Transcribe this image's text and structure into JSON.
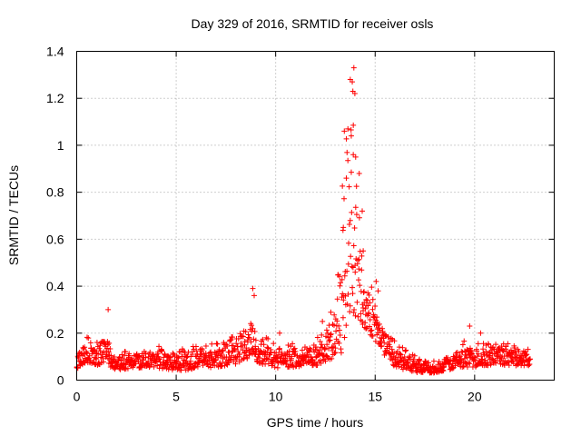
{
  "chart_data": {
    "type": "scatter",
    "title": "Day 329 of 2016, SRMTID for receiver osls",
    "xlabel": "GPS time / hours",
    "ylabel": "SRMTID / TECUs",
    "xlim": [
      0,
      24
    ],
    "ylim": [
      0,
      1.4
    ],
    "xticks": [
      0,
      5,
      10,
      15,
      20
    ],
    "yticks": [
      0,
      0.2,
      0.4,
      0.6,
      0.8,
      1,
      1.2,
      1.4
    ],
    "ytick_labels": [
      "0",
      "0.2",
      "0.4",
      "0.6",
      "0.8",
      "1",
      "1.2",
      "1.4"
    ],
    "grid": true,
    "marker": "+",
    "color": "#ff0000",
    "x_end": 22.8,
    "envelope": [
      {
        "t": 0.0,
        "base": 0.07,
        "spread": 0.04
      },
      {
        "t": 0.5,
        "base": 0.12,
        "spread": 0.08
      },
      {
        "t": 1.0,
        "base": 0.1,
        "spread": 0.07
      },
      {
        "t": 1.5,
        "base": 0.12,
        "spread": 0.1
      },
      {
        "t": 2.0,
        "base": 0.07,
        "spread": 0.05
      },
      {
        "t": 3.0,
        "base": 0.08,
        "spread": 0.06
      },
      {
        "t": 4.0,
        "base": 0.09,
        "spread": 0.07
      },
      {
        "t": 5.0,
        "base": 0.07,
        "spread": 0.06
      },
      {
        "t": 6.0,
        "base": 0.09,
        "spread": 0.08
      },
      {
        "t": 7.0,
        "base": 0.1,
        "spread": 0.08
      },
      {
        "t": 8.0,
        "base": 0.12,
        "spread": 0.1
      },
      {
        "t": 8.5,
        "base": 0.15,
        "spread": 0.12
      },
      {
        "t": 8.8,
        "base": 0.2,
        "spread": 0.15
      },
      {
        "t": 9.0,
        "base": 0.13,
        "spread": 0.1
      },
      {
        "t": 10.0,
        "base": 0.09,
        "spread": 0.07
      },
      {
        "t": 11.0,
        "base": 0.1,
        "spread": 0.08
      },
      {
        "t": 12.0,
        "base": 0.11,
        "spread": 0.09
      },
      {
        "t": 12.5,
        "base": 0.13,
        "spread": 0.1
      },
      {
        "t": 13.0,
        "base": 0.2,
        "spread": 0.18
      },
      {
        "t": 13.3,
        "base": 0.4,
        "spread": 0.55
      },
      {
        "t": 13.6,
        "base": 0.55,
        "spread": 0.6
      },
      {
        "t": 13.9,
        "base": 0.6,
        "spread": 0.7
      },
      {
        "t": 14.2,
        "base": 0.5,
        "spread": 0.45
      },
      {
        "t": 14.5,
        "base": 0.3,
        "spread": 0.15
      },
      {
        "t": 15.0,
        "base": 0.25,
        "spread": 0.15
      },
      {
        "t": 15.5,
        "base": 0.15,
        "spread": 0.1
      },
      {
        "t": 16.0,
        "base": 0.1,
        "spread": 0.08
      },
      {
        "t": 17.0,
        "base": 0.06,
        "spread": 0.05
      },
      {
        "t": 18.0,
        "base": 0.05,
        "spread": 0.04
      },
      {
        "t": 19.0,
        "base": 0.08,
        "spread": 0.06
      },
      {
        "t": 19.5,
        "base": 0.11,
        "spread": 0.1
      },
      {
        "t": 20.0,
        "base": 0.1,
        "spread": 0.08
      },
      {
        "t": 21.0,
        "base": 0.11,
        "spread": 0.08
      },
      {
        "t": 22.0,
        "base": 0.1,
        "spread": 0.07
      },
      {
        "t": 22.8,
        "base": 0.09,
        "spread": 0.05
      }
    ],
    "highlights": [
      {
        "x": 13.93,
        "y": 1.33
      },
      {
        "x": 13.75,
        "y": 1.28
      },
      {
        "x": 13.85,
        "y": 1.27
      },
      {
        "x": 13.88,
        "y": 1.23
      },
      {
        "x": 13.98,
        "y": 1.22
      },
      {
        "x": 13.63,
        "y": 1.07
      },
      {
        "x": 13.45,
        "y": 1.06
      },
      {
        "x": 13.8,
        "y": 1.04
      },
      {
        "x": 13.9,
        "y": 0.96
      },
      {
        "x": 14.02,
        "y": 0.95
      },
      {
        "x": 14.2,
        "y": 0.88
      },
      {
        "x": 13.55,
        "y": 0.86
      },
      {
        "x": 14.35,
        "y": 0.72
      },
      {
        "x": 13.4,
        "y": 0.65
      },
      {
        "x": 14.4,
        "y": 0.55
      },
      {
        "x": 1.58,
        "y": 0.3
      },
      {
        "x": 8.85,
        "y": 0.39
      },
      {
        "x": 8.92,
        "y": 0.36
      },
      {
        "x": 15.05,
        "y": 0.42
      },
      {
        "x": 15.15,
        "y": 0.38
      },
      {
        "x": 19.75,
        "y": 0.23
      },
      {
        "x": 20.3,
        "y": 0.2
      },
      {
        "x": 12.35,
        "y": 0.25
      },
      {
        "x": 10.2,
        "y": 0.2
      }
    ],
    "n_points": 1400
  }
}
